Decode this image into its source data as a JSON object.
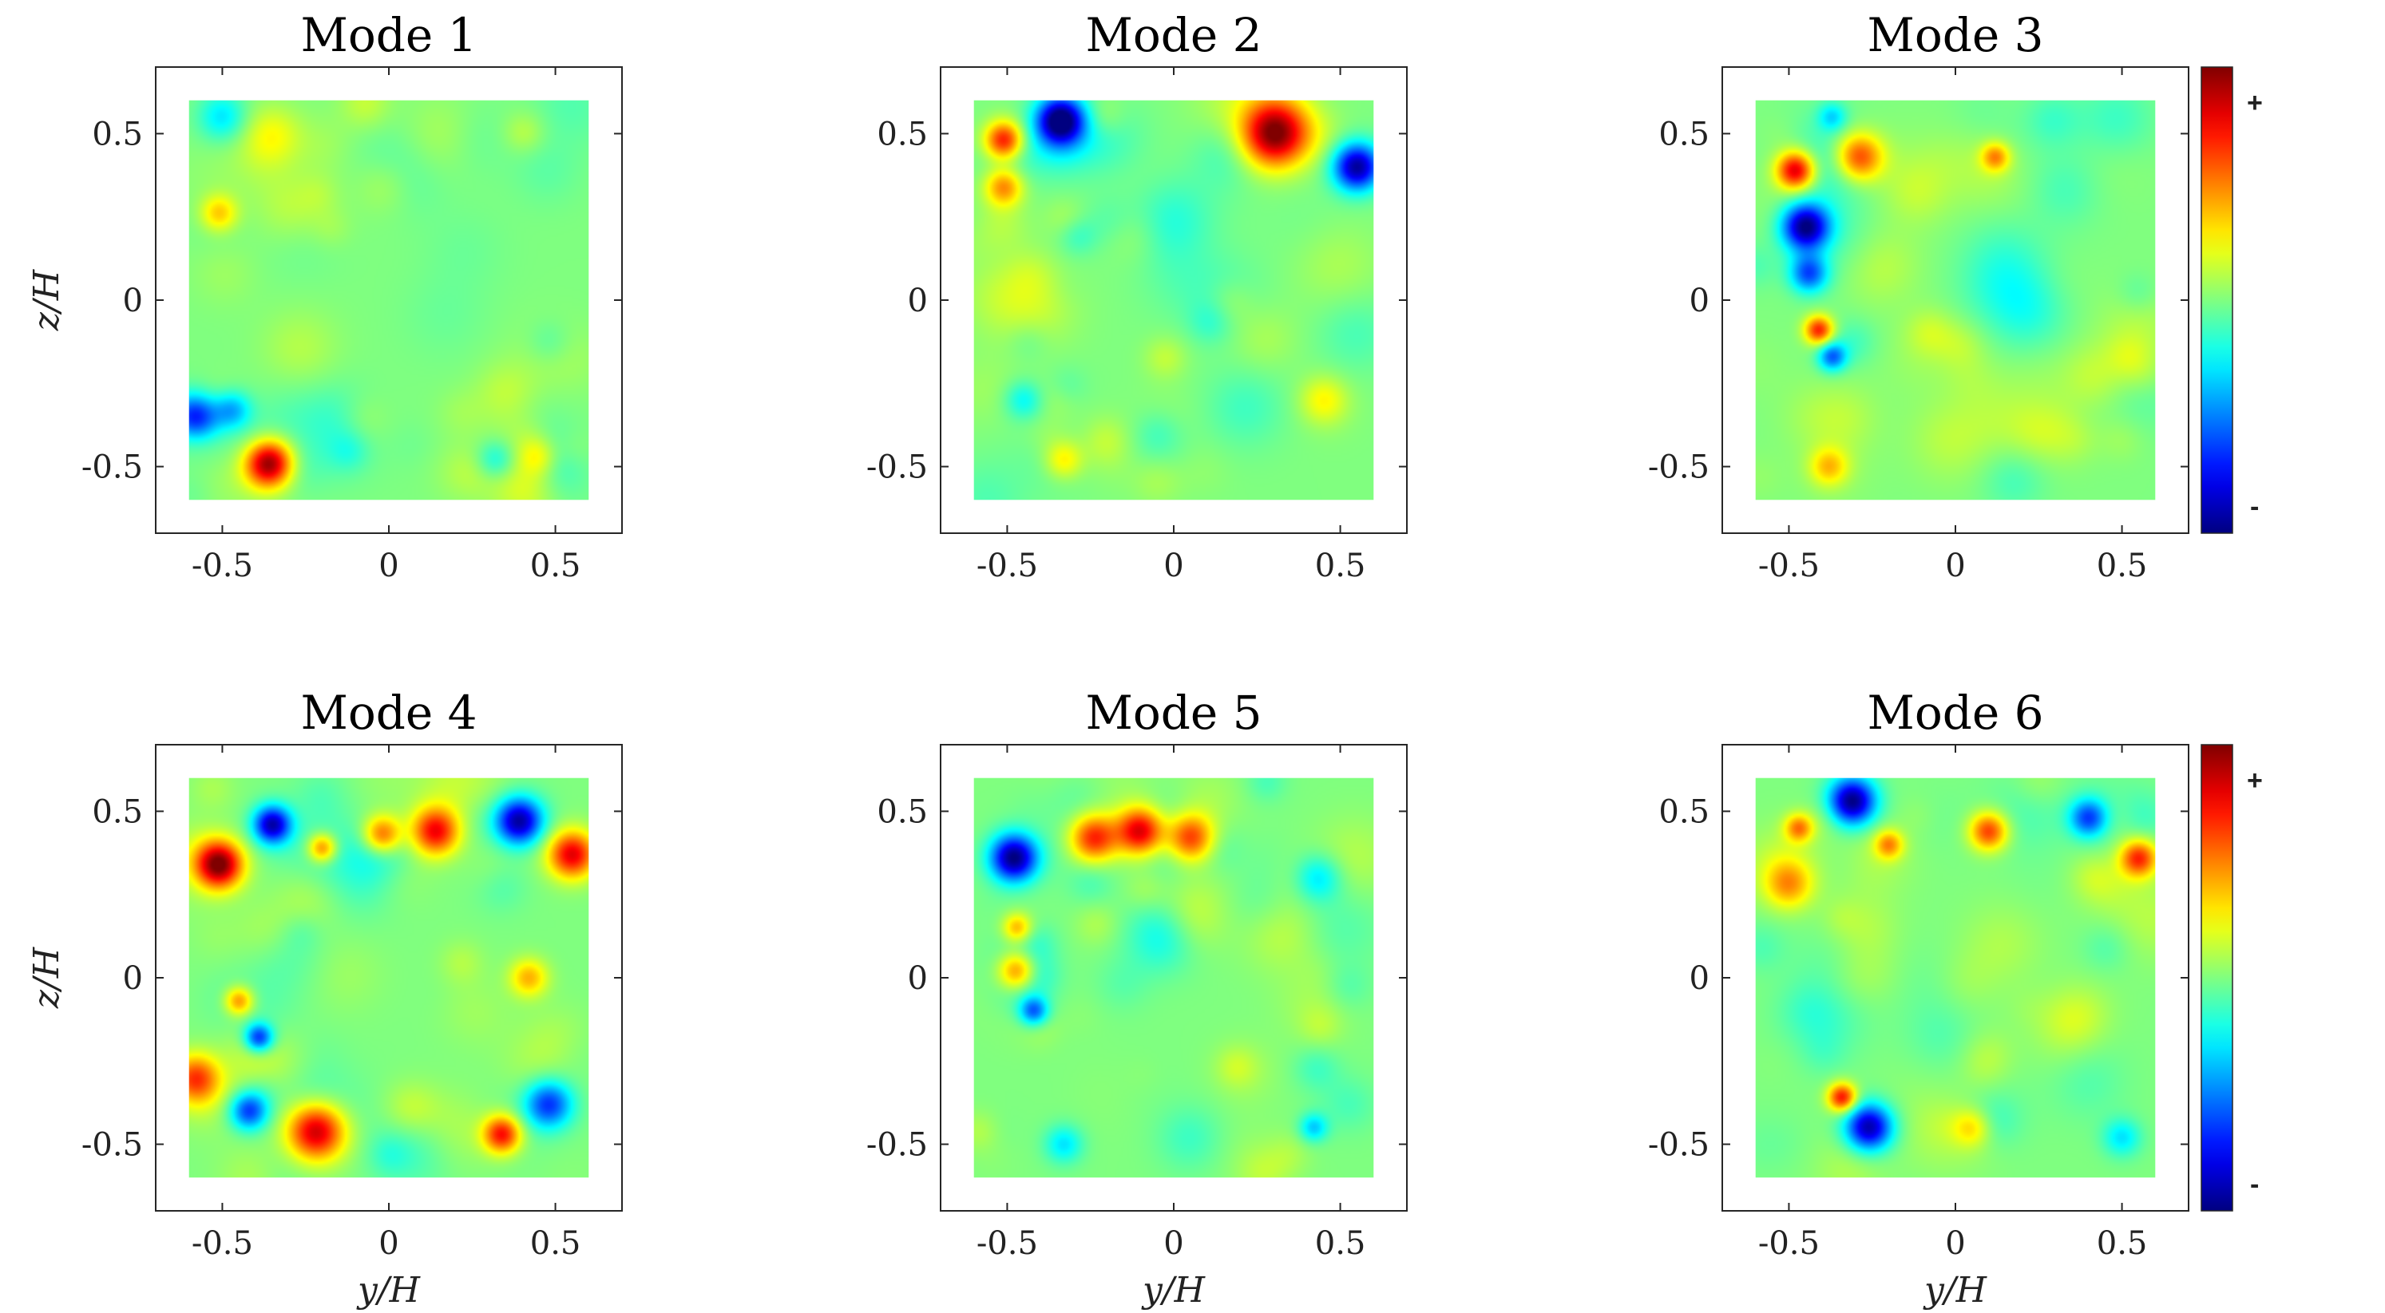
{
  "chart_data": [
    {
      "type": "heatmap",
      "title": "Mode 1",
      "xlabel": "",
      "ylabel": "z/H",
      "xlim": [
        -0.7,
        0.7
      ],
      "ylim": [
        -0.7,
        0.7
      ],
      "xticks": [
        "-0.5",
        "0",
        "0.5"
      ],
      "yticks": [
        "0.5",
        "0",
        "-0.5"
      ],
      "blobs": [
        {
          "y": -0.36,
          "z": -0.49,
          "amp": 1.0,
          "r": 0.05
        },
        {
          "y": -0.58,
          "z": -0.35,
          "amp": -0.75,
          "r": 0.05
        },
        {
          "y": -0.47,
          "z": -0.33,
          "amp": -0.4,
          "r": 0.04
        },
        {
          "y": -0.51,
          "z": 0.26,
          "amp": 0.4,
          "r": 0.04
        },
        {
          "y": -0.5,
          "z": 0.55,
          "amp": -0.3,
          "r": 0.05
        },
        {
          "y": 0.32,
          "z": -0.48,
          "amp": -0.25,
          "r": 0.04
        },
        {
          "y": 0.45,
          "z": -0.47,
          "amp": 0.25,
          "r": 0.04
        },
        {
          "y": -0.35,
          "z": 0.5,
          "amp": 0.2,
          "r": 0.06
        }
      ]
    },
    {
      "type": "heatmap",
      "title": "Mode 2",
      "xlabel": "",
      "ylabel": "",
      "xlim": [
        -0.7,
        0.7
      ],
      "ylim": [
        -0.7,
        0.7
      ],
      "xticks": [
        "-0.5",
        "0",
        "0.5"
      ],
      "yticks": [
        "0.5",
        "0",
        "-0.5"
      ],
      "blobs": [
        {
          "y": 0.3,
          "z": 0.5,
          "amp": 1.0,
          "r": 0.07
        },
        {
          "y": -0.34,
          "z": 0.54,
          "amp": -1.0,
          "r": 0.05
        },
        {
          "y": 0.55,
          "z": 0.4,
          "amp": -0.95,
          "r": 0.05
        },
        {
          "y": -0.51,
          "z": 0.48,
          "amp": 0.75,
          "r": 0.04
        },
        {
          "y": -0.51,
          "z": 0.34,
          "amp": 0.5,
          "r": 0.04
        },
        {
          "y": -0.45,
          "z": -0.3,
          "amp": -0.25,
          "r": 0.04
        },
        {
          "y": -0.33,
          "z": -0.48,
          "amp": 0.3,
          "r": 0.04
        },
        {
          "y": 0.45,
          "z": -0.3,
          "amp": 0.25,
          "r": 0.05
        }
      ]
    },
    {
      "type": "heatmap",
      "title": "Mode 3",
      "xlabel": "",
      "ylabel": "",
      "xlim": [
        -0.7,
        0.7
      ],
      "ylim": [
        -0.7,
        0.7
      ],
      "xticks": [
        "-0.5",
        "0",
        "0.5"
      ],
      "yticks": [
        "0.5",
        "0",
        "-0.5"
      ],
      "blobs": [
        {
          "y": -0.45,
          "z": 0.22,
          "amp": -1.0,
          "r": 0.05
        },
        {
          "y": -0.44,
          "z": 0.08,
          "amp": -0.6,
          "r": 0.04
        },
        {
          "y": -0.48,
          "z": 0.39,
          "amp": 0.85,
          "r": 0.04
        },
        {
          "y": -0.29,
          "z": 0.43,
          "amp": 0.65,
          "r": 0.05
        },
        {
          "y": -0.41,
          "z": -0.09,
          "amp": 0.7,
          "r": 0.03
        },
        {
          "y": -0.37,
          "z": -0.17,
          "amp": -0.55,
          "r": 0.03
        },
        {
          "y": 0.12,
          "z": 0.43,
          "amp": 0.45,
          "r": 0.03
        },
        {
          "y": -0.38,
          "z": -0.5,
          "amp": 0.35,
          "r": 0.04
        },
        {
          "y": -0.37,
          "z": 0.55,
          "amp": -0.3,
          "r": 0.03
        }
      ]
    },
    {
      "type": "heatmap",
      "title": "Mode 4",
      "xlabel": "y/H",
      "ylabel": "z/H",
      "xlim": [
        -0.7,
        0.7
      ],
      "ylim": [
        -0.7,
        0.7
      ],
      "xticks": [
        "-0.5",
        "0",
        "0.5"
      ],
      "yticks": [
        "0.5",
        "0",
        "-0.5"
      ],
      "blobs": [
        {
          "y": -0.51,
          "z": 0.34,
          "amp": 1.0,
          "r": 0.05
        },
        {
          "y": -0.35,
          "z": 0.46,
          "amp": -0.9,
          "r": 0.04
        },
        {
          "y": 0.39,
          "z": 0.47,
          "amp": -0.95,
          "r": 0.05
        },
        {
          "y": 0.55,
          "z": 0.37,
          "amp": 0.8,
          "r": 0.05
        },
        {
          "y": 0.14,
          "z": 0.44,
          "amp": 0.75,
          "r": 0.05
        },
        {
          "y": -0.02,
          "z": 0.43,
          "amp": 0.6,
          "r": 0.04
        },
        {
          "y": -0.2,
          "z": 0.39,
          "amp": 0.55,
          "r": 0.03
        },
        {
          "y": -0.22,
          "z": -0.46,
          "amp": 0.85,
          "r": 0.06
        },
        {
          "y": 0.34,
          "z": -0.47,
          "amp": 0.75,
          "r": 0.04
        },
        {
          "y": -0.42,
          "z": -0.4,
          "amp": -0.65,
          "r": 0.04
        },
        {
          "y": 0.48,
          "z": -0.38,
          "amp": -0.65,
          "r": 0.05
        },
        {
          "y": -0.39,
          "z": -0.18,
          "amp": -0.7,
          "r": 0.03
        },
        {
          "y": -0.58,
          "z": -0.3,
          "amp": 0.55,
          "r": 0.05
        },
        {
          "y": -0.45,
          "z": -0.07,
          "amp": 0.5,
          "r": 0.03
        },
        {
          "y": 0.42,
          "z": 0.0,
          "amp": 0.4,
          "r": 0.04
        }
      ]
    },
    {
      "type": "heatmap",
      "title": "Mode 5",
      "xlabel": "y/H",
      "ylabel": "",
      "xlim": [
        -0.7,
        0.7
      ],
      "ylim": [
        -0.7,
        0.7
      ],
      "xticks": [
        "-0.5",
        "0",
        "0.5"
      ],
      "yticks": [
        "0.5",
        "0",
        "-0.5"
      ],
      "blobs": [
        {
          "y": -0.48,
          "z": 0.36,
          "amp": -1.0,
          "r": 0.05
        },
        {
          "y": -0.1,
          "z": 0.44,
          "amp": 0.85,
          "r": 0.05
        },
        {
          "y": 0.05,
          "z": 0.42,
          "amp": 0.7,
          "r": 0.05
        },
        {
          "y": -0.24,
          "z": 0.42,
          "amp": 0.7,
          "r": 0.05
        },
        {
          "y": -0.47,
          "z": 0.02,
          "amp": 0.6,
          "r": 0.04
        },
        {
          "y": -0.47,
          "z": 0.15,
          "amp": 0.4,
          "r": 0.03
        },
        {
          "y": -0.42,
          "z": -0.1,
          "amp": -0.55,
          "r": 0.03
        },
        {
          "y": 0.43,
          "z": 0.3,
          "amp": -0.35,
          "r": 0.05
        },
        {
          "y": 0.42,
          "z": -0.45,
          "amp": -0.35,
          "r": 0.03
        },
        {
          "y": -0.33,
          "z": -0.5,
          "amp": -0.3,
          "r": 0.04
        }
      ]
    },
    {
      "type": "heatmap",
      "title": "Mode 6",
      "xlabel": "y/H",
      "ylabel": "",
      "xlim": [
        -0.7,
        0.7
      ],
      "ylim": [
        -0.7,
        0.7
      ],
      "xticks": [
        "-0.5",
        "0",
        "0.5"
      ],
      "yticks": [
        "0.5",
        "0",
        "-0.5"
      ],
      "blobs": [
        {
          "y": -0.31,
          "z": 0.53,
          "amp": -1.0,
          "r": 0.05
        },
        {
          "y": -0.26,
          "z": -0.45,
          "amp": -0.95,
          "r": 0.05
        },
        {
          "y": -0.34,
          "z": -0.36,
          "amp": 0.75,
          "r": 0.03
        },
        {
          "y": 0.1,
          "z": 0.44,
          "amp": 0.65,
          "r": 0.04
        },
        {
          "y": 0.55,
          "z": 0.36,
          "amp": 0.7,
          "r": 0.04
        },
        {
          "y": 0.4,
          "z": 0.48,
          "amp": -0.6,
          "r": 0.04
        },
        {
          "y": -0.47,
          "z": 0.45,
          "amp": 0.5,
          "r": 0.03
        },
        {
          "y": -0.2,
          "z": 0.4,
          "amp": 0.45,
          "r": 0.03
        },
        {
          "y": -0.5,
          "z": 0.28,
          "amp": 0.4,
          "r": 0.05
        },
        {
          "y": 0.5,
          "z": -0.48,
          "amp": -0.3,
          "r": 0.04
        },
        {
          "y": 0.05,
          "z": -0.45,
          "amp": 0.3,
          "r": 0.04
        }
      ]
    }
  ],
  "colorbar": {
    "colormap": "jet",
    "plus_label": "+",
    "minus_label": "-"
  }
}
